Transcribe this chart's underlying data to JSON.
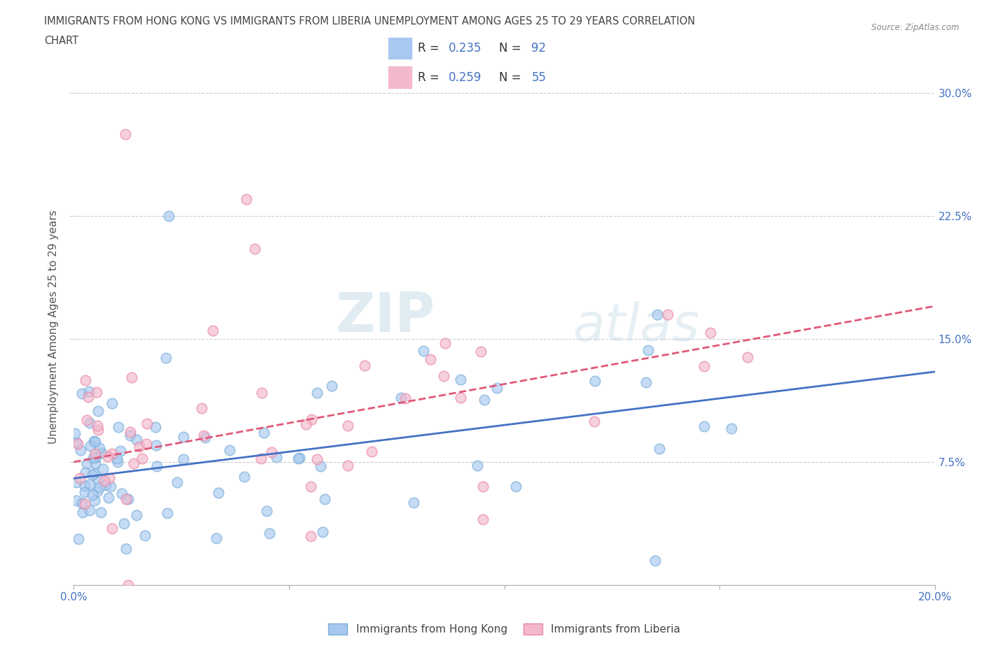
{
  "title_line1": "IMMIGRANTS FROM HONG KONG VS IMMIGRANTS FROM LIBERIA UNEMPLOYMENT AMONG AGES 25 TO 29 YEARS CORRELATION",
  "title_line2": "CHART",
  "source_text": "Source: ZipAtlas.com",
  "ylabel": "Unemployment Among Ages 25 to 29 years",
  "xlim": [
    0.0,
    0.2
  ],
  "ylim": [
    0.0,
    0.32
  ],
  "hk_color": "#a8c8f0",
  "hk_edge_color": "#7aaed8",
  "liberia_color": "#f4b8cc",
  "liberia_edge_color": "#e888a8",
  "hk_line_color": "#4472c4",
  "liberia_line_color": "#e05878",
  "legend_label_hk": "Immigrants from Hong Kong",
  "legend_label_liberia": "Immigrants from Liberia",
  "R_hk": 0.235,
  "N_hk": 92,
  "R_liberia": 0.259,
  "N_liberia": 55,
  "watermark_color": "#d8e8f0",
  "grid_color": "#cccccc",
  "title_color": "#444444",
  "axis_label_color": "#555555",
  "tick_color": "#4472c4",
  "hk_trend_x0": 0.0,
  "hk_trend_y0": 0.065,
  "hk_trend_x1": 0.2,
  "hk_trend_y1": 0.13,
  "lib_trend_x0": 0.0,
  "lib_trend_y0": 0.075,
  "lib_trend_x1": 0.2,
  "lib_trend_y1": 0.17
}
